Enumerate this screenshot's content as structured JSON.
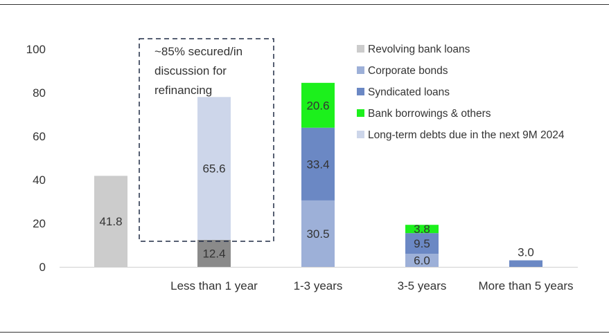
{
  "chart_data": {
    "type": "bar",
    "stacked": true,
    "categories": [
      "",
      "Less than 1 year",
      "1-3 years",
      "3-5 years",
      "More than 5 years"
    ],
    "ylim": [
      0,
      100
    ],
    "yticks": [
      "0",
      "20",
      "40",
      "60",
      "80",
      "100"
    ],
    "grid": false,
    "legend_position": "top-right",
    "series": [
      {
        "name": "Revolving bank loans",
        "color": "#cccccc",
        "values": [
          41.8,
          12.4,
          null,
          null,
          null
        ],
        "labels": [
          "41.8",
          "12.4",
          "",
          "",
          ""
        ]
      },
      {
        "name": "Corporate bonds",
        "color": "#9db0d8",
        "values": [
          null,
          null,
          30.5,
          6.0,
          null
        ],
        "labels": [
          "",
          "",
          "30.5",
          "6.0",
          ""
        ]
      },
      {
        "name": "Syndicated loans",
        "color": "#6b88c4",
        "values": [
          null,
          null,
          33.4,
          9.5,
          3.0
        ],
        "labels": [
          "",
          "",
          "33.4",
          "9.5",
          "3.0"
        ]
      },
      {
        "name": "Bank borrowings & others",
        "color": "#1cf01c",
        "values": [
          null,
          null,
          20.6,
          3.8,
          null
        ],
        "labels": [
          "",
          "",
          "20.6",
          "3.8",
          ""
        ]
      },
      {
        "name": "Long-term debts due in the next 9M 2024",
        "color": "#cdd6ea",
        "values": [
          null,
          65.6,
          null,
          null,
          null
        ],
        "labels": [
          "",
          "65.6",
          "",
          "",
          ""
        ]
      }
    ],
    "bar_label_colors": {
      "0-0": "#333333",
      "0-1": "#222222"
    },
    "revolving_dark_color": "#8a8a8a",
    "annotation": [
      "~85% secured/in",
      "discussion for",
      "refinancing"
    ]
  }
}
